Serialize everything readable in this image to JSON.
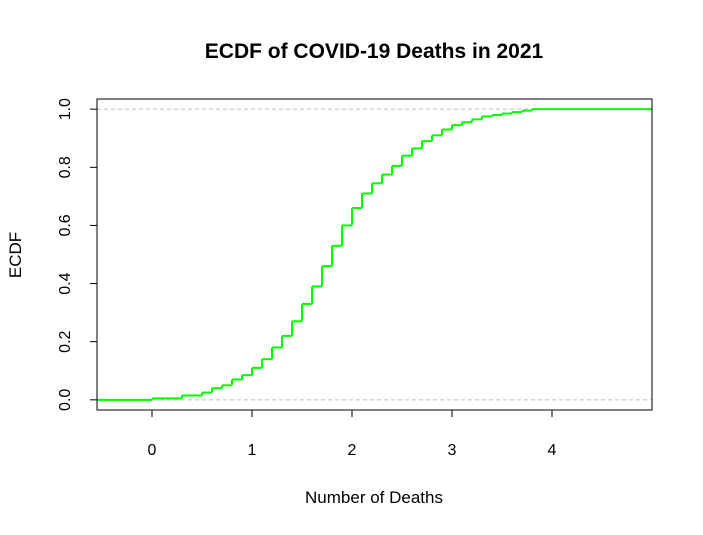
{
  "chart_data": {
    "type": "line",
    "title": "ECDF of COVID-19 Deaths in 2021",
    "xlabel": "Number of Deaths",
    "ylabel": "ECDF",
    "xlim": [
      -0.55,
      5.0
    ],
    "ylim": [
      -0.035,
      1.035
    ],
    "xticks": [
      0,
      1,
      2,
      3,
      4
    ],
    "xtick_labels": [
      "0",
      "1",
      "2",
      "3",
      "4"
    ],
    "yticks": [
      0.0,
      0.2,
      0.4,
      0.6,
      0.8,
      1.0
    ],
    "ytick_labels": [
      "0.0",
      "0.2",
      "0.4",
      "0.6",
      "0.8",
      "1.0"
    ],
    "reference_lines": [
      0,
      1
    ],
    "series_color": "#00ff00",
    "reference_color": "#bebebe",
    "series": [
      {
        "x": [
          -0.55,
          0.0,
          0.3,
          0.5,
          0.6,
          0.7,
          0.8,
          0.9,
          1.0,
          1.1,
          1.2,
          1.3,
          1.4,
          1.5,
          1.6,
          1.7,
          1.8,
          1.9,
          2.0,
          2.1,
          2.2,
          2.3,
          2.4,
          2.5,
          2.6,
          2.7,
          2.8,
          2.9,
          3.0,
          3.1,
          3.2,
          3.3,
          3.4,
          3.5,
          3.6,
          3.7,
          3.8,
          4.0,
          5.0
        ],
        "y": [
          0.0,
          0.005,
          0.015,
          0.025,
          0.04,
          0.05,
          0.07,
          0.085,
          0.11,
          0.14,
          0.18,
          0.22,
          0.27,
          0.33,
          0.39,
          0.46,
          0.53,
          0.6,
          0.66,
          0.71,
          0.745,
          0.775,
          0.805,
          0.84,
          0.865,
          0.89,
          0.91,
          0.93,
          0.945,
          0.955,
          0.965,
          0.975,
          0.98,
          0.985,
          0.99,
          0.995,
          1.0,
          1.0,
          1.0
        ]
      }
    ]
  }
}
